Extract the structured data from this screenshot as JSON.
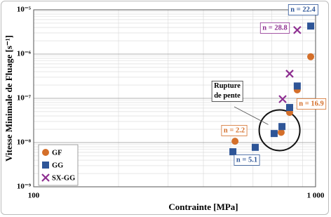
{
  "chart_data": {
    "type": "scatter",
    "x_label": "Contrainte [MPa]",
    "y_label": "Vitesse Minimale de Fluage [s⁻¹]",
    "xscale": "log",
    "yscale": "log",
    "xlim": [
      100,
      1000
    ],
    "ylim": [
      1e-09,
      1e-05
    ],
    "xticks": [
      100,
      {
        "value": 1000,
        "label": "1 000"
      }
    ],
    "yticks": [
      {
        "value": 1e-09,
        "label": "10⁻⁹"
      },
      {
        "value": 1e-08,
        "label": "10⁻⁸"
      },
      {
        "value": 1e-07,
        "label": "10⁻⁷"
      },
      {
        "value": 1e-06,
        "label": "10⁻⁶"
      },
      {
        "value": 1e-05,
        "label": "10⁻⁵"
      }
    ],
    "grid": true,
    "legend": "lower left",
    "series": [
      {
        "name": "GF",
        "color": "#d46f2a",
        "marker": "circle",
        "x": [
          518,
          755,
          809,
          861,
          961
        ],
        "values": [
          1.07e-08,
          1.7e-08,
          4.8e-08,
          1.55e-07,
          8.7e-07
        ]
      },
      {
        "name": "GG",
        "color": "#2e5597",
        "marker": "square",
        "x": [
          509,
          611,
          713,
          760,
          809,
          861,
          961
        ],
        "values": [
          6.2e-09,
          7.8e-09,
          1.6e-08,
          2.3e-08,
          6.2e-08,
          1.9e-07,
          4.3e-06
        ]
      },
      {
        "name": "SX-GG",
        "color": "#8e2f91",
        "marker": "x",
        "x": [
          764,
          809,
          861
        ],
        "values": [
          9.6e-08,
          3.6e-07,
          3.5e-06
        ]
      }
    ],
    "annotations": [
      {
        "text": "n = 22.4",
        "color": "#2e5597"
      },
      {
        "text": "n = 28.8",
        "color": "#8e2f91"
      },
      {
        "text": "n = 16.9",
        "color": "#d46f2a"
      },
      {
        "text": "n = 2.2",
        "color": "#d46f2a"
      },
      {
        "text": "n = 5.1",
        "color": "#2e5597"
      },
      {
        "text": "Rupture de pente",
        "color": "#000000"
      }
    ]
  }
}
